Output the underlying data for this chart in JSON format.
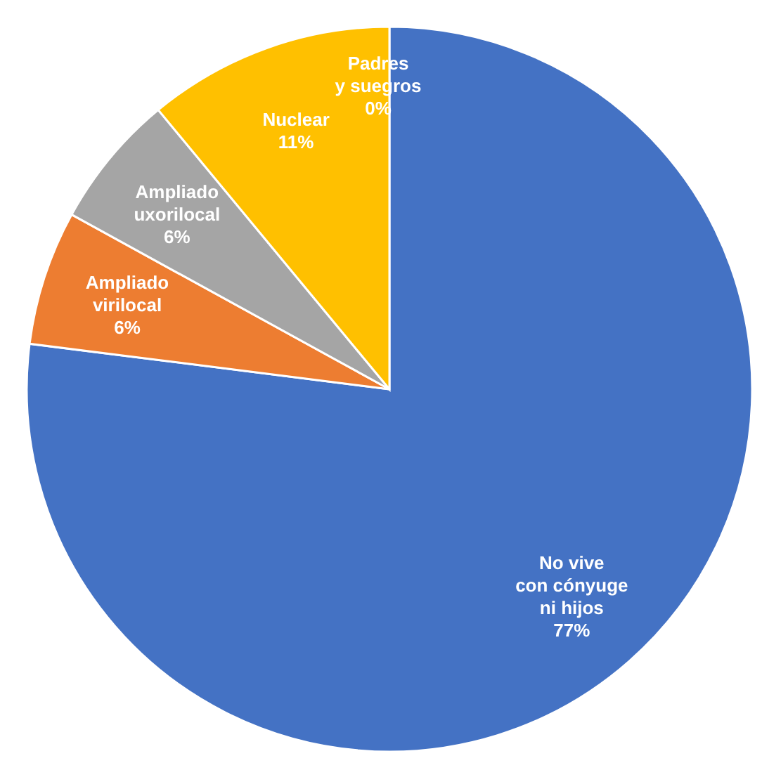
{
  "chart_data": {
    "type": "pie",
    "categories": [
      "No vive\ncon cónyuge\nni hijos",
      "Ampliado\nvirilocal",
      "Ampliado\nuxorilocal",
      "Nuclear",
      "Padres\ny suegros"
    ],
    "values": [
      77,
      6,
      6,
      11,
      0
    ],
    "colors": [
      "#4472c4",
      "#ed7d31",
      "#a5a5a5",
      "#ffc000",
      "#5b9bd5"
    ],
    "value_labels": [
      "77%",
      "6%",
      "6%",
      "11%",
      "0%"
    ],
    "legend": false
  }
}
